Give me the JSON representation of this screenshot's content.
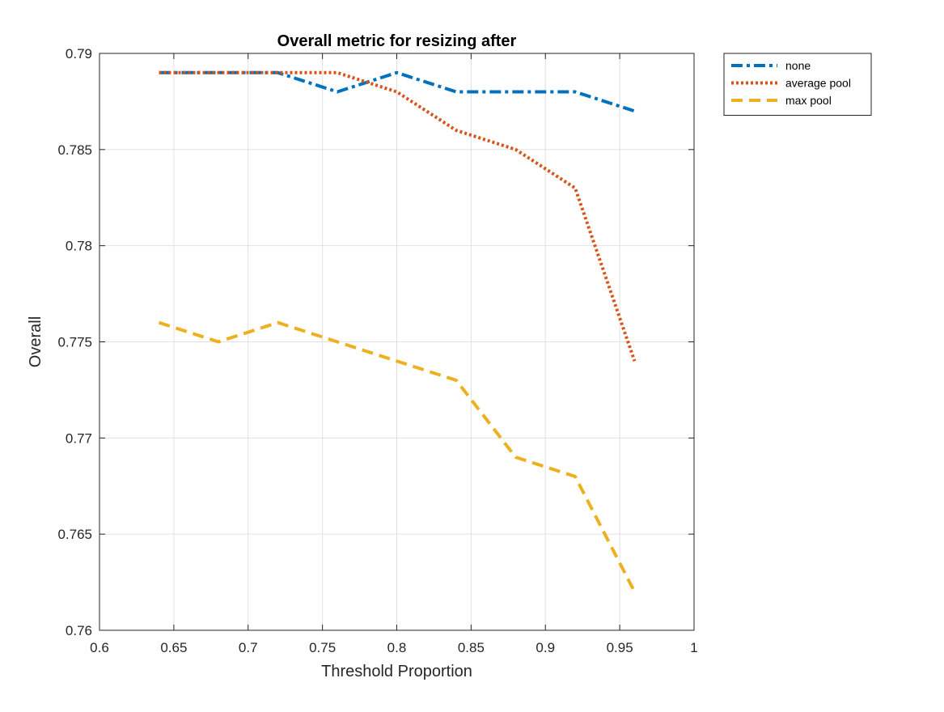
{
  "chart_data": {
    "type": "line",
    "title": "Overall metric for resizing after",
    "xlabel": "Threshold Proportion",
    "ylabel": "Overall",
    "xlim": [
      0.6,
      1
    ],
    "ylim": [
      0.76,
      0.79
    ],
    "xticks": [
      0.6,
      0.65,
      0.7,
      0.75,
      0.8,
      0.85,
      0.9,
      0.95,
      1
    ],
    "xtick_labels": [
      "0.6",
      "0.65",
      "0.7",
      "0.75",
      "0.8",
      "0.85",
      "0.9",
      "0.95",
      "1"
    ],
    "yticks": [
      0.76,
      0.765,
      0.77,
      0.775,
      0.78,
      0.785,
      0.79
    ],
    "ytick_labels": [
      "0.76",
      "0.765",
      "0.77",
      "0.775",
      "0.78",
      "0.785",
      "0.79"
    ],
    "grid": true,
    "legend_position": "outside top-right",
    "x": [
      0.64,
      0.68,
      0.72,
      0.76,
      0.8,
      0.84,
      0.88,
      0.92,
      0.96
    ],
    "series": [
      {
        "name": "none",
        "color": "#0072BD",
        "style": "dash-dot",
        "values": [
          0.789,
          0.789,
          0.789,
          0.788,
          0.789,
          0.788,
          0.788,
          0.788,
          0.787
        ]
      },
      {
        "name": "average pool",
        "color": "#D95319",
        "style": "dotted",
        "values": [
          0.789,
          0.789,
          0.789,
          0.789,
          0.788,
          0.786,
          0.785,
          0.783,
          0.774
        ]
      },
      {
        "name": "max pool",
        "color": "#EDB120",
        "style": "dashed",
        "values": [
          0.776,
          0.775,
          0.776,
          0.775,
          0.774,
          0.773,
          0.769,
          0.768,
          0.762
        ]
      }
    ]
  }
}
